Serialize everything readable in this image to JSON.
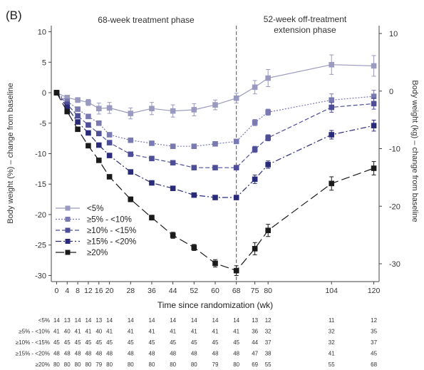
{
  "chart_data": {
    "type": "line",
    "panel_label": "(B)",
    "x": [
      0,
      4,
      8,
      12,
      16,
      20,
      28,
      36,
      44,
      52,
      60,
      68,
      75,
      80,
      104,
      120
    ],
    "xlabel": "Time since randomization (wk)",
    "ylabel_left": "Body weight (%) – change from baseline",
    "ylabel_right": "Body weight (kg) – change from baseline",
    "ylim_left": [
      -31,
      11
    ],
    "yticks_left": [
      10,
      5,
      0,
      -5,
      -10,
      -15,
      -20,
      -25,
      -30
    ],
    "yticks_right": [
      10,
      0,
      -10,
      -20,
      -30
    ],
    "phase_divider_week": 68,
    "phases": [
      {
        "label": "68-week treatment phase"
      },
      {
        "label": "52-week off-treatment",
        "label2": "extension phase"
      }
    ],
    "grid": false,
    "legend_position": "bottom-left",
    "series": [
      {
        "name": "<5%",
        "color": "#9a9ac0",
        "dash": "",
        "marker_fill": "#9a9ac0",
        "values": [
          0,
          -0.8,
          -1.2,
          -1.6,
          -2.6,
          -2.5,
          -3.4,
          -2.6,
          -3.0,
          -2.8,
          -2.0,
          -0.9,
          0.9,
          2.4,
          4.6,
          4.4
        ],
        "err": [
          0,
          0.3,
          0.4,
          0.5,
          0.9,
          0.9,
          0.9,
          1.0,
          1.0,
          1.0,
          0.8,
          0.8,
          1.1,
          1.4,
          1.6,
          1.7
        ]
      },
      {
        "name": "≥5% - <10%",
        "color": "#7a7ab2",
        "dash": "2,2",
        "marker_fill": "#7a7ab2",
        "values": [
          0,
          -1.4,
          -2.7,
          -3.9,
          -5.0,
          -6.9,
          -7.8,
          -8.3,
          -8.8,
          -8.8,
          -8.4,
          -8.0,
          -4.9,
          -3.2,
          -1.2,
          -0.6
        ],
        "err": [
          0,
          0.2,
          0.2,
          0.3,
          0.3,
          0.3,
          0.3,
          0.3,
          0.3,
          0.3,
          0.3,
          0.3,
          0.5,
          0.5,
          1.0,
          1.0
        ]
      },
      {
        "name": "≥10% - <15%",
        "color": "#4e4e98",
        "dash": "6,3",
        "marker_fill": "#4e4e98",
        "values": [
          0,
          -1.9,
          -3.8,
          -5.3,
          -6.7,
          -8.2,
          -10.1,
          -10.8,
          -11.5,
          -12.3,
          -12.3,
          -12.3,
          -9.3,
          -7.4,
          -2.4,
          -1.8
        ],
        "err": [
          0,
          0.2,
          0.2,
          0.2,
          0.2,
          0.2,
          0.2,
          0.2,
          0.2,
          0.2,
          0.2,
          0.2,
          0.5,
          0.5,
          0.8,
          0.9
        ]
      },
      {
        "name": "≥15% - <20%",
        "color": "#2a2a7a",
        "dash": "8,3,2,3",
        "marker_fill": "#2a2a7a",
        "values": [
          0,
          -2.4,
          -4.8,
          -6.6,
          -8.6,
          -10.3,
          -13.0,
          -14.8,
          -15.7,
          -16.8,
          -17.2,
          -17.2,
          -14.2,
          -11.8,
          -6.9,
          -5.4
        ],
        "err": [
          0,
          0.2,
          0.2,
          0.2,
          0.2,
          0.2,
          0.3,
          0.3,
          0.3,
          0.3,
          0.3,
          0.3,
          0.7,
          0.6,
          0.7,
          0.9
        ]
      },
      {
        "name": "≥20%",
        "color": "#1a1a1a",
        "dash": "12,5",
        "marker_fill": "#1a1a1a",
        "values": [
          0,
          -3.1,
          -6.0,
          -8.7,
          -11.1,
          -13.8,
          -17.5,
          -20.5,
          -23.4,
          -25.4,
          -28.0,
          -29.2,
          -25.6,
          -22.6,
          -14.9,
          -12.4
        ],
        "err": [
          0,
          0.3,
          0.3,
          0.3,
          0.3,
          0.3,
          0.4,
          0.4,
          0.5,
          0.5,
          0.6,
          0.8,
          1.0,
          1.0,
          1.1,
          1.1
        ]
      }
    ],
    "at_risk": {
      "weeks": [
        0,
        4,
        8,
        12,
        16,
        20,
        28,
        36,
        44,
        52,
        60,
        68,
        75,
        80,
        104,
        120
      ],
      "rows": [
        {
          "label": "<5%",
          "counts": [
            14,
            13,
            14,
            14,
            13,
            14,
            14,
            14,
            14,
            14,
            14,
            14,
            13,
            12,
            11,
            12
          ]
        },
        {
          "label": "≥5% - <10%",
          "counts": [
            41,
            40,
            41,
            41,
            40,
            41,
            41,
            41,
            41,
            41,
            41,
            41,
            36,
            32,
            32,
            35
          ]
        },
        {
          "label": "≥10% - <15%",
          "counts": [
            45,
            45,
            45,
            45,
            45,
            45,
            45,
            45,
            45,
            45,
            45,
            45,
            44,
            37,
            32,
            37
          ]
        },
        {
          "label": "≥15% - <20%",
          "counts": [
            48,
            48,
            48,
            48,
            48,
            48,
            48,
            48,
            48,
            48,
            48,
            48,
            47,
            38,
            41,
            45
          ]
        },
        {
          "label": "≥20%",
          "counts": [
            80,
            80,
            80,
            80,
            79,
            80,
            80,
            80,
            80,
            80,
            79,
            80,
            69,
            55,
            55,
            68
          ]
        }
      ]
    }
  }
}
